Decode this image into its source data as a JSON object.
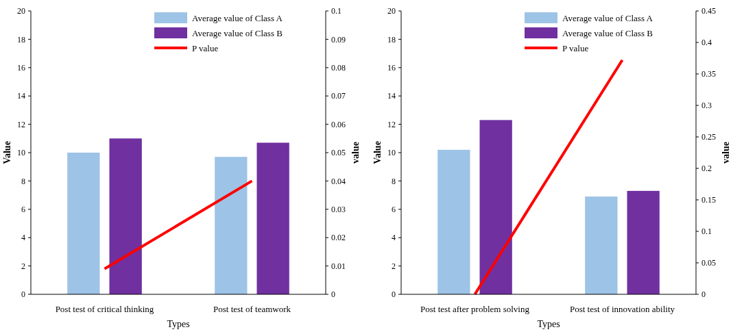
{
  "chart_data": [
    {
      "type": "bar",
      "xlabel": "Types",
      "ylabel": "Value",
      "y2label": "value",
      "categories": [
        "Post test of critical thinking",
        "Post test of teamwork"
      ],
      "ylim": [
        0,
        20
      ],
      "yticks": [
        0,
        2,
        4,
        6,
        8,
        10,
        12,
        14,
        16,
        18,
        20
      ],
      "y2lim": [
        0,
        0.1
      ],
      "y2ticks": [
        0,
        0.01,
        0.02,
        0.03,
        0.04,
        0.05,
        0.06,
        0.07,
        0.08,
        0.09,
        0.1
      ],
      "legend": "top right",
      "grid": false,
      "series": [
        {
          "name": "Average value of Class A",
          "color": "#9dc3e6",
          "values": [
            10.0,
            9.7
          ]
        },
        {
          "name": "Average value of Class B",
          "color": "#7030a0",
          "values": [
            11.0,
            10.7
          ]
        },
        {
          "name": "P value",
          "type": "line",
          "axis": "y2",
          "color": "#ff0000",
          "values": [
            0.009,
            0.04
          ]
        }
      ]
    },
    {
      "type": "bar",
      "xlabel": "Types",
      "ylabel": "Value",
      "y2label": "value",
      "categories": [
        "Post test after problem solving",
        "Post test of innovation ability"
      ],
      "ylim": [
        0,
        20
      ],
      "yticks": [
        0,
        2,
        4,
        6,
        8,
        10,
        12,
        14,
        16,
        18,
        20
      ],
      "y2lim": [
        0,
        0.45
      ],
      "y2ticks": [
        0,
        0.05,
        0.1,
        0.15,
        0.2,
        0.25,
        0.3,
        0.35,
        0.4,
        0.45
      ],
      "legend": "top right",
      "grid": false,
      "series": [
        {
          "name": "Average value of Class A",
          "color": "#9dc3e6",
          "values": [
            10.2,
            6.9
          ]
        },
        {
          "name": "Average value of Class B",
          "color": "#7030a0",
          "values": [
            12.3,
            7.3
          ]
        },
        {
          "name": "P value",
          "type": "line",
          "axis": "y2",
          "color": "#ff0000",
          "values": [
            0,
            0.372
          ]
        }
      ]
    }
  ]
}
